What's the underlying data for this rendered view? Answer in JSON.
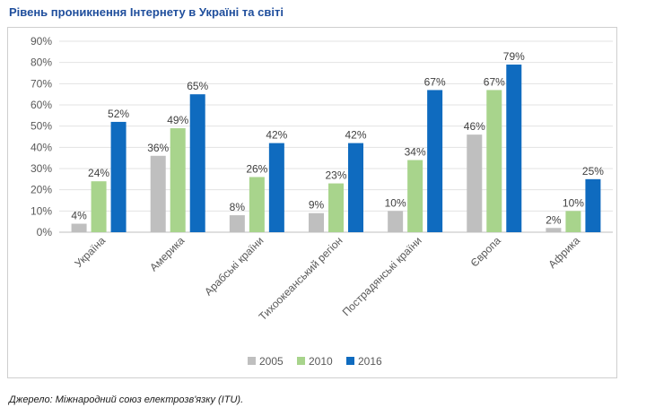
{
  "title": "Рівень проникнення Інтернету в Україні та світі",
  "source": "Джерело: Міжнародний союз електрозв'язку (ITU).",
  "chart_data": {
    "type": "bar",
    "categories": [
      "Україна",
      "Америка",
      "Арабські країни",
      "Тихоокеанський регіон",
      "Пострадянські країни",
      "Європа",
      "Африка"
    ],
    "series": [
      {
        "name": "2005",
        "color": "#bfbfbf",
        "values": [
          4,
          36,
          8,
          9,
          10,
          46,
          2
        ]
      },
      {
        "name": "2010",
        "color": "#a8d48c",
        "values": [
          24,
          49,
          26,
          23,
          34,
          67,
          10
        ]
      },
      {
        "name": "2016",
        "color": "#0f6bbf",
        "values": [
          52,
          65,
          42,
          42,
          67,
          79,
          25
        ]
      }
    ],
    "value_suffix": "%",
    "ylim": [
      0,
      90
    ],
    "yticks": [
      "0%",
      "10%",
      "20%",
      "30%",
      "40%",
      "50%",
      "60%",
      "70%",
      "80%",
      "90%"
    ],
    "grid": true,
    "legend_position": "bottom"
  }
}
